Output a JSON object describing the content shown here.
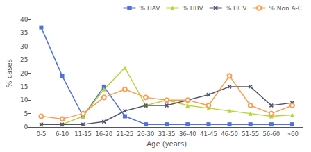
{
  "chart_data": {
    "type": "line",
    "xlabel": "Age (years)",
    "ylabel": "% cases",
    "categories": [
      "0-5",
      "6-10",
      "11-15",
      "16-20",
      "21-25",
      "26-30",
      "31-35",
      "36-40",
      "41-45",
      "46-50",
      "51-55",
      "56-60",
      ">60"
    ],
    "series": [
      {
        "name": "% HAV",
        "marker": "square",
        "values": [
          37,
          19,
          4,
          15,
          4,
          1,
          1,
          1,
          1,
          1,
          1,
          1,
          1
        ]
      },
      {
        "name": "% HBV",
        "marker": "triangle",
        "values": [
          1,
          1,
          4,
          14,
          22,
          8,
          10,
          8,
          7,
          6,
          5,
          4,
          4.5
        ]
      },
      {
        "name": "% HCV",
        "marker": "x",
        "values": [
          1,
          1,
          1,
          2,
          6,
          8,
          8,
          10,
          12,
          15,
          15,
          8,
          9
        ]
      },
      {
        "name": "% Non A-C",
        "marker": "hollow_circle",
        "values": [
          4,
          3,
          5,
          11,
          14,
          11,
          10,
          10,
          8,
          19,
          8,
          5,
          8
        ]
      }
    ],
    "ylim": [
      0,
      40
    ],
    "yticks": [
      0,
      5,
      10,
      15,
      20,
      25,
      30,
      35,
      40
    ],
    "grid": false,
    "legend": "upper right"
  }
}
